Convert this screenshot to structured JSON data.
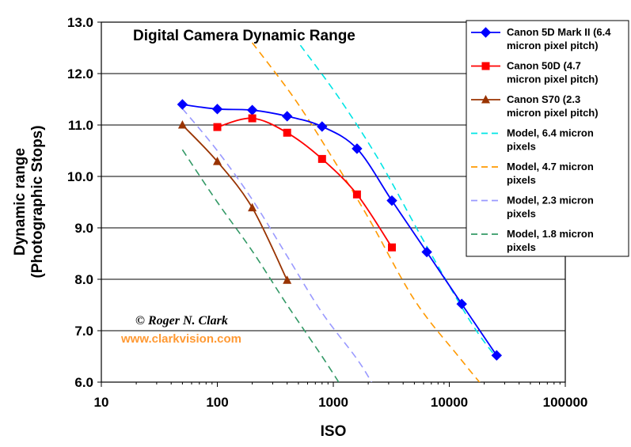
{
  "chart_data": {
    "type": "line",
    "title": "Digital Camera Dynamic Range",
    "xlabel": "ISO",
    "ylabel_line1": "Dynamic range",
    "ylabel_line2": "(Photographic Stops)",
    "x_scale": "log",
    "xlim": [
      10,
      100000
    ],
    "ylim": [
      6.0,
      13.0
    ],
    "x_ticks": [
      "10",
      "100",
      "1000",
      "10000",
      "100000"
    ],
    "x_tick_values": [
      10,
      100,
      1000,
      10000,
      100000
    ],
    "y_ticks": [
      "6.0",
      "7.0",
      "8.0",
      "9.0",
      "10.0",
      "11.0",
      "12.0",
      "13.0"
    ],
    "y_tick_values": [
      6,
      7,
      8,
      9,
      10,
      11,
      12,
      13
    ],
    "grid": "horizontal",
    "legend_position": "top-right",
    "series": [
      {
        "name": "Canon 5D Mark II (6.4 micron pixel pitch)",
        "legend_lines": [
          "Canon 5D Mark II (6.4",
          "micron pixel pitch)"
        ],
        "color": "#0000ff",
        "marker": "diamond",
        "style": "solid",
        "x": [
          50,
          100,
          200,
          400,
          800,
          1600,
          3200,
          6400,
          12800,
          25600
        ],
        "y": [
          11.4,
          11.31,
          11.29,
          11.17,
          10.97,
          10.54,
          9.53,
          8.53,
          7.52,
          6.52
        ]
      },
      {
        "name": "Canon 50D (4.7 micron pixel pitch)",
        "legend_lines": [
          "Canon 50D (4.7",
          "micron pixel pitch)"
        ],
        "color": "#ff0000",
        "marker": "square",
        "style": "solid",
        "x": [
          100,
          200,
          400,
          800,
          1600,
          3200
        ],
        "y": [
          10.96,
          11.13,
          10.85,
          10.34,
          9.65,
          8.62
        ]
      },
      {
        "name": "Canon S70 (2.3 micron pixel pitch)",
        "legend_lines": [
          "Canon S70 (2.3",
          "micron pixel pitch)"
        ],
        "color": "#993300",
        "marker": "triangle",
        "style": "solid",
        "x": [
          50,
          100,
          200,
          400
        ],
        "y": [
          11.0,
          10.29,
          9.39,
          7.98
        ]
      },
      {
        "name": "Model, 6.4 micron pixels",
        "legend_lines": [
          "Model, 6.4 micron",
          "pixels"
        ],
        "color": "#00e5e5",
        "marker": "none",
        "style": "dashed",
        "x": [
          520,
          1100,
          2500,
          6000,
          15000,
          25000
        ],
        "y": [
          12.55,
          11.55,
          10.3,
          8.75,
          7.2,
          6.5
        ]
      },
      {
        "name": "Model, 4.7 micron pixels",
        "legend_lines": [
          "Model, 4.7 micron",
          "pixels"
        ],
        "color": "#ff9900",
        "marker": "none",
        "style": "dashed",
        "x": [
          200,
          450,
          900,
          2000,
          5000,
          12000,
          19000
        ],
        "y": [
          12.6,
          11.55,
          10.5,
          9.2,
          7.6,
          6.5,
          5.95
        ]
      },
      {
        "name": "Model, 2.3 micron pixels",
        "legend_lines": [
          "Model, 2.3 micron",
          "pixels"
        ],
        "color": "#9999ff",
        "marker": "none",
        "style": "dashed",
        "x": [
          50,
          100,
          200,
          400,
          800,
          1600,
          2200
        ],
        "y": [
          11.32,
          10.5,
          9.55,
          8.45,
          7.35,
          6.45,
          5.95
        ]
      },
      {
        "name": "Model, 1.8 micron pixels",
        "legend_lines": [
          "Model, 1.8 micron",
          "pixels"
        ],
        "color": "#339966",
        "marker": "none",
        "style": "dashed",
        "x": [
          50,
          100,
          200,
          400,
          800,
          1150
        ],
        "y": [
          10.52,
          9.5,
          8.55,
          7.5,
          6.5,
          5.95
        ]
      }
    ],
    "credit_name": "© Roger N. Clark",
    "credit_url": "www.clarkvision.com"
  }
}
